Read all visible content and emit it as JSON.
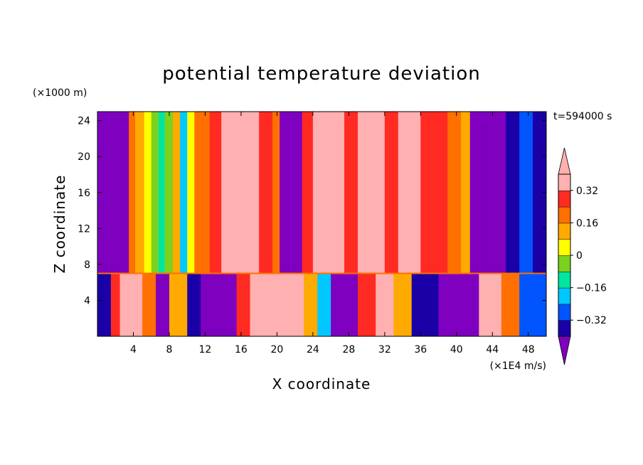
{
  "chart_data": {
    "type": "heatmap",
    "title": "potential temperature deviation",
    "xlabel": "X coordinate",
    "ylabel": "Z coordinate",
    "x_unit": "(×1E4 m/s)",
    "y_unit": "(×1000 m)",
    "time_label": "t=594000 s",
    "xlim": [
      0,
      50
    ],
    "ylim": [
      0,
      25
    ],
    "x_ticks": [
      4,
      8,
      12,
      16,
      20,
      24,
      28,
      32,
      36,
      40,
      44,
      48
    ],
    "y_ticks": [
      4,
      8,
      12,
      16,
      20,
      24
    ],
    "colorbar": {
      "levels": [
        -0.4,
        -0.32,
        -0.24,
        -0.16,
        -0.08,
        0,
        0.08,
        0.16,
        0.24,
        0.32,
        0.4
      ],
      "tick_values": [
        -0.32,
        -0.16,
        0,
        0.16,
        0.32
      ],
      "tick_labels": [
        "−0.32",
        "−0.16",
        "0",
        "0.16",
        "0.32"
      ],
      "colors": [
        "#7f00bf",
        "#1a00a6",
        "#0055ff",
        "#00c8ff",
        "#00e6a0",
        "#7ad21e",
        "#ffff00",
        "#ffaa00",
        "#ff7000",
        "#ff2a22",
        "#ffb0b0"
      ],
      "extend": "both"
    },
    "columns_upper": [
      {
        "x0": 0,
        "x1": 3.5,
        "v": -0.42
      },
      {
        "x0": 3.5,
        "x1": 4.2,
        "v": 0.2
      },
      {
        "x0": 4.2,
        "x1": 5.2,
        "v": 0.12
      },
      {
        "x0": 5.2,
        "x1": 6.0,
        "v": 0.02
      },
      {
        "x0": 6.0,
        "x1": 6.8,
        "v": -0.06
      },
      {
        "x0": 6.8,
        "x1": 7.5,
        "v": -0.12
      },
      {
        "x0": 7.5,
        "x1": 8.4,
        "v": -0.02
      },
      {
        "x0": 8.4,
        "x1": 9.2,
        "v": 0.08
      },
      {
        "x0": 9.2,
        "x1": 10.0,
        "v": -0.22
      },
      {
        "x0": 10.0,
        "x1": 10.8,
        "v": 0.04
      },
      {
        "x0": 10.8,
        "x1": 12.5,
        "v": 0.16
      },
      {
        "x0": 12.5,
        "x1": 13.8,
        "v": 0.26
      },
      {
        "x0": 13.8,
        "x1": 18.0,
        "v": 0.42
      },
      {
        "x0": 18.0,
        "x1": 19.5,
        "v": 0.3
      },
      {
        "x0": 19.5,
        "x1": 20.3,
        "v": 0.2
      },
      {
        "x0": 20.3,
        "x1": 22.8,
        "v": -0.42
      },
      {
        "x0": 22.8,
        "x1": 24.0,
        "v": 0.28
      },
      {
        "x0": 24.0,
        "x1": 27.5,
        "v": 0.36
      },
      {
        "x0": 27.5,
        "x1": 29.0,
        "v": 0.28
      },
      {
        "x0": 29.0,
        "x1": 32.0,
        "v": 0.42
      },
      {
        "x0": 32.0,
        "x1": 33.5,
        "v": 0.3
      },
      {
        "x0": 33.5,
        "x1": 36.0,
        "v": 0.36
      },
      {
        "x0": 36.0,
        "x1": 39.0,
        "v": 0.28
      },
      {
        "x0": 39.0,
        "x1": 40.5,
        "v": 0.2
      },
      {
        "x0": 40.5,
        "x1": 41.5,
        "v": 0.12
      },
      {
        "x0": 41.5,
        "x1": 42.8,
        "v": -0.42
      },
      {
        "x0": 42.8,
        "x1": 45.5,
        "v": -0.42
      },
      {
        "x0": 45.5,
        "x1": 47.0,
        "v": -0.34
      },
      {
        "x0": 47.0,
        "x1": 48.5,
        "v": -0.26
      },
      {
        "x0": 48.5,
        "x1": 50.0,
        "v": -0.34
      }
    ],
    "columns_lower": [
      {
        "x0": 0,
        "x1": 1.5,
        "v": -0.36
      },
      {
        "x0": 1.5,
        "x1": 2.5,
        "v": 0.3
      },
      {
        "x0": 2.5,
        "x1": 5.0,
        "v": 0.42
      },
      {
        "x0": 5.0,
        "x1": 6.5,
        "v": 0.2
      },
      {
        "x0": 6.5,
        "x1": 8.0,
        "v": -0.42
      },
      {
        "x0": 8.0,
        "x1": 10.0,
        "v": 0.1
      },
      {
        "x0": 10.0,
        "x1": 11.5,
        "v": -0.36
      },
      {
        "x0": 11.5,
        "x1": 15.5,
        "v": -0.42
      },
      {
        "x0": 15.5,
        "x1": 17.0,
        "v": 0.28
      },
      {
        "x0": 17.0,
        "x1": 21.5,
        "v": 0.42
      },
      {
        "x0": 21.5,
        "x1": 23.0,
        "v": 0.34
      },
      {
        "x0": 23.0,
        "x1": 24.5,
        "v": 0.08
      },
      {
        "x0": 24.5,
        "x1": 26.0,
        "v": -0.2
      },
      {
        "x0": 26.0,
        "x1": 29.0,
        "v": -0.42
      },
      {
        "x0": 29.0,
        "x1": 31.0,
        "v": 0.24
      },
      {
        "x0": 31.0,
        "x1": 33.0,
        "v": 0.36
      },
      {
        "x0": 33.0,
        "x1": 35.0,
        "v": 0.1
      },
      {
        "x0": 35.0,
        "x1": 38.0,
        "v": -0.36
      },
      {
        "x0": 38.0,
        "x1": 42.5,
        "v": -0.42
      },
      {
        "x0": 42.5,
        "x1": 45.0,
        "v": 0.42
      },
      {
        "x0": 45.0,
        "x1": 47.0,
        "v": 0.2
      },
      {
        "x0": 47.0,
        "x1": 50.0,
        "v": -0.28
      }
    ],
    "layer_boundary_z": 7
  }
}
